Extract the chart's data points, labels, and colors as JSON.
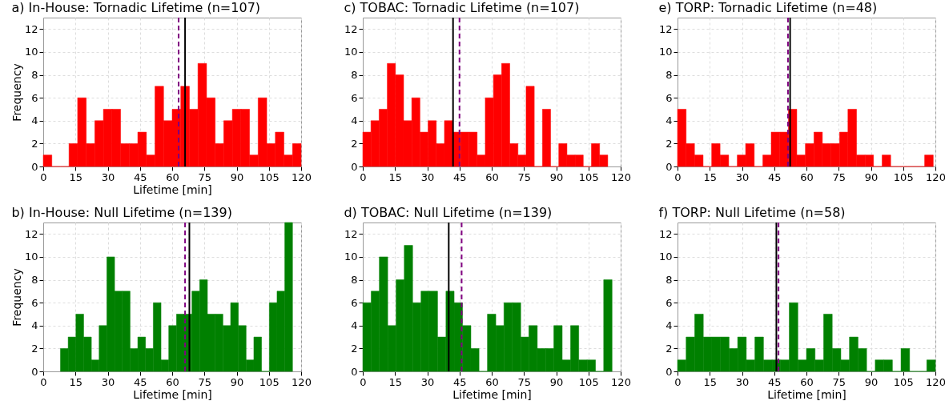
{
  "chart_data": [
    {
      "type": "histogram",
      "title": "a) In-House: Tornadic Lifetime (n=107)",
      "xlabel": "Lifetime [min]",
      "ylabel": "Frequency",
      "color": "#ff0000",
      "bins": [
        0,
        4,
        8,
        12,
        16,
        20,
        24,
        28,
        32,
        36,
        40,
        44,
        48,
        52,
        56,
        60,
        64,
        68,
        72,
        76,
        80,
        84,
        88,
        92,
        96,
        100,
        104,
        108,
        112,
        116,
        120
      ],
      "values": [
        1,
        0,
        0,
        2,
        6,
        2,
        4,
        5,
        5,
        2,
        2,
        3,
        1,
        7,
        4,
        5,
        7,
        5,
        9,
        6,
        2,
        4,
        5,
        5,
        1,
        6,
        2,
        3,
        1,
        2
      ],
      "xlim": [
        0,
        120
      ],
      "xticks": [
        0,
        15,
        30,
        45,
        60,
        75,
        90,
        105,
        120
      ],
      "ylim": [
        0,
        13
      ],
      "yticks": [
        0,
        2,
        4,
        6,
        8,
        10,
        12
      ],
      "grid": true,
      "ref_lines": [
        {
          "axis": "x",
          "value": 63,
          "color": "#800080",
          "line_style": "dashed"
        },
        {
          "axis": "x",
          "value": 66,
          "color": "#000000",
          "line_style": "solid"
        }
      ]
    },
    {
      "type": "histogram",
      "title": "c) TOBAC: Tornadic Lifetime (n=107)",
      "color": "#ff0000",
      "bins": [
        0,
        3.8,
        7.6,
        11.4,
        15.2,
        19,
        22.8,
        26.6,
        30.4,
        34.2,
        38,
        41.8,
        45.6,
        49.4,
        53.2,
        57,
        60.8,
        64.6,
        68.4,
        72.2,
        76,
        79.8,
        83.6,
        87.4,
        91.2,
        95,
        98.8,
        102.6,
        106.4,
        110.2,
        114
      ],
      "values": [
        3,
        4,
        5,
        9,
        8,
        4,
        6,
        3,
        4,
        2,
        4,
        3,
        3,
        3,
        1,
        6,
        8,
        9,
        2,
        1,
        7,
        0,
        5,
        0,
        2,
        1,
        1,
        0,
        2,
        1
      ],
      "xlim": [
        0,
        120
      ],
      "xticks": [
        0,
        15,
        30,
        45,
        60,
        75,
        90,
        105,
        120
      ],
      "ylim": [
        0,
        13
      ],
      "yticks": [
        0,
        2,
        4,
        6,
        8,
        10,
        12
      ],
      "grid": true,
      "ref_lines": [
        {
          "axis": "x",
          "value": 42,
          "color": "#000000",
          "line_style": "solid"
        },
        {
          "axis": "x",
          "value": 45,
          "color": "#800080",
          "line_style": "dashed"
        }
      ]
    },
    {
      "type": "histogram",
      "title": "e) TORP: Tornadic Lifetime (n=48)",
      "color": "#ff0000",
      "bins": [
        0,
        4.0,
        7.9,
        11.9,
        15.9,
        19.8,
        23.8,
        27.8,
        31.7,
        35.7,
        39.7,
        43.6,
        47.6,
        51.6,
        55.5,
        59.5,
        63.5,
        67.4,
        71.4,
        75.4,
        79.3,
        83.3,
        87.3,
        91.2,
        95.2,
        99.2,
        103.1,
        107.1,
        111.1,
        115.0,
        119.0
      ],
      "values": [
        5,
        2,
        1,
        0,
        2,
        1,
        0,
        1,
        2,
        0,
        1,
        3,
        3,
        5,
        1,
        2,
        3,
        2,
        2,
        3,
        5,
        1,
        1,
        0,
        1,
        0,
        0,
        0,
        0,
        1
      ],
      "xlim": [
        0,
        120
      ],
      "xticks": [
        0,
        15,
        30,
        45,
        60,
        75,
        90,
        105,
        120
      ],
      "ylim": [
        0,
        13
      ],
      "yticks": [
        0,
        2,
        4,
        6,
        8,
        10,
        12
      ],
      "grid": true,
      "ref_lines": [
        {
          "axis": "x",
          "value": 51.4,
          "color": "#800080",
          "line_style": "dashed"
        },
        {
          "axis": "x",
          "value": 52.4,
          "color": "#000000",
          "line_style": "solid"
        }
      ]
    },
    {
      "type": "histogram",
      "title": "b) In-House: Null Lifetime (n=139)",
      "xlabel": "Lifetime [min]",
      "ylabel": "Frequency",
      "color": "#008000",
      "bins": [
        8,
        11.6,
        15.2,
        18.8,
        22.4,
        26,
        29.6,
        33.2,
        36.8,
        40.4,
        44,
        47.6,
        51.2,
        54.8,
        58.4,
        62,
        65.6,
        69.2,
        72.8,
        76.4,
        80,
        83.6,
        87.2,
        90.8,
        94.4,
        98,
        101.6,
        105.2,
        108.8,
        112.4,
        116
      ],
      "values": [
        2,
        3,
        5,
        3,
        1,
        4,
        10,
        7,
        7,
        2,
        3,
        2,
        6,
        1,
        4,
        5,
        5,
        7,
        8,
        5,
        5,
        4,
        6,
        4,
        1,
        3,
        0,
        6,
        7,
        13
      ],
      "xlim": [
        0,
        120
      ],
      "xticks": [
        0,
        15,
        30,
        45,
        60,
        75,
        90,
        105,
        120
      ],
      "ylim": [
        0,
        13
      ],
      "yticks": [
        0,
        2,
        4,
        6,
        8,
        10,
        12
      ],
      "grid": true,
      "ref_lines": [
        {
          "axis": "x",
          "value": 66,
          "color": "#800080",
          "line_style": "dashed"
        },
        {
          "axis": "x",
          "value": 68,
          "color": "#000000",
          "line_style": "solid"
        }
      ]
    },
    {
      "type": "histogram",
      "title": "d) TOBAC: Null Lifetime (n=139)",
      "xlabel": "Lifetime [min]",
      "color": "#008000",
      "bins": [
        0,
        3.9,
        7.7,
        11.6,
        15.5,
        19.3,
        23.2,
        27.1,
        30.9,
        34.8,
        38.7,
        42.5,
        46.4,
        50.3,
        54.1,
        58,
        61.9,
        65.7,
        69.6,
        73.5,
        77.3,
        81.2,
        85.1,
        88.9,
        92.8,
        96.7,
        100.5,
        104.4,
        108.3,
        112.1,
        116
      ],
      "values": [
        6,
        7,
        10,
        4,
        8,
        11,
        6,
        7,
        7,
        3,
        7,
        6,
        4,
        2,
        0,
        5,
        4,
        6,
        6,
        3,
        4,
        2,
        2,
        4,
        1,
        4,
        1,
        1,
        0,
        8
      ],
      "xlim": [
        0,
        120
      ],
      "xticks": [
        0,
        15,
        30,
        45,
        60,
        75,
        90,
        105,
        120
      ],
      "ylim": [
        0,
        13
      ],
      "yticks": [
        0,
        2,
        4,
        6,
        8,
        10,
        12
      ],
      "grid": true,
      "ref_lines": [
        {
          "axis": "x",
          "value": 40,
          "color": "#000000",
          "line_style": "solid"
        },
        {
          "axis": "x",
          "value": 46,
          "color": "#800080",
          "line_style": "dashed"
        }
      ]
    },
    {
      "type": "histogram",
      "title": "f) TORP: Null Lifetime (n=58)",
      "xlabel": "Lifetime [min]",
      "color": "#008000",
      "bins": [
        0,
        4,
        8,
        12,
        16,
        20,
        24,
        28,
        32,
        36,
        40,
        44,
        48,
        52,
        56,
        60,
        64,
        68,
        72,
        76,
        80,
        84,
        88,
        92,
        96,
        100,
        104,
        108,
        112,
        116,
        120
      ],
      "values": [
        1,
        3,
        5,
        3,
        3,
        3,
        2,
        3,
        1,
        3,
        1,
        1,
        1,
        6,
        1,
        2,
        1,
        5,
        2,
        1,
        3,
        2,
        0,
        1,
        1,
        0,
        2,
        0,
        0,
        1
      ],
      "xlim": [
        0,
        120
      ],
      "xticks": [
        0,
        15,
        30,
        45,
        60,
        75,
        90,
        105,
        120
      ],
      "ylim": [
        0,
        13
      ],
      "yticks": [
        0,
        2,
        4,
        6,
        8,
        10,
        12
      ],
      "grid": true,
      "ref_lines": [
        {
          "axis": "x",
          "value": 46,
          "color": "#000000",
          "line_style": "solid"
        },
        {
          "axis": "x",
          "value": 47,
          "color": "#800080",
          "line_style": "dashed"
        }
      ]
    }
  ]
}
